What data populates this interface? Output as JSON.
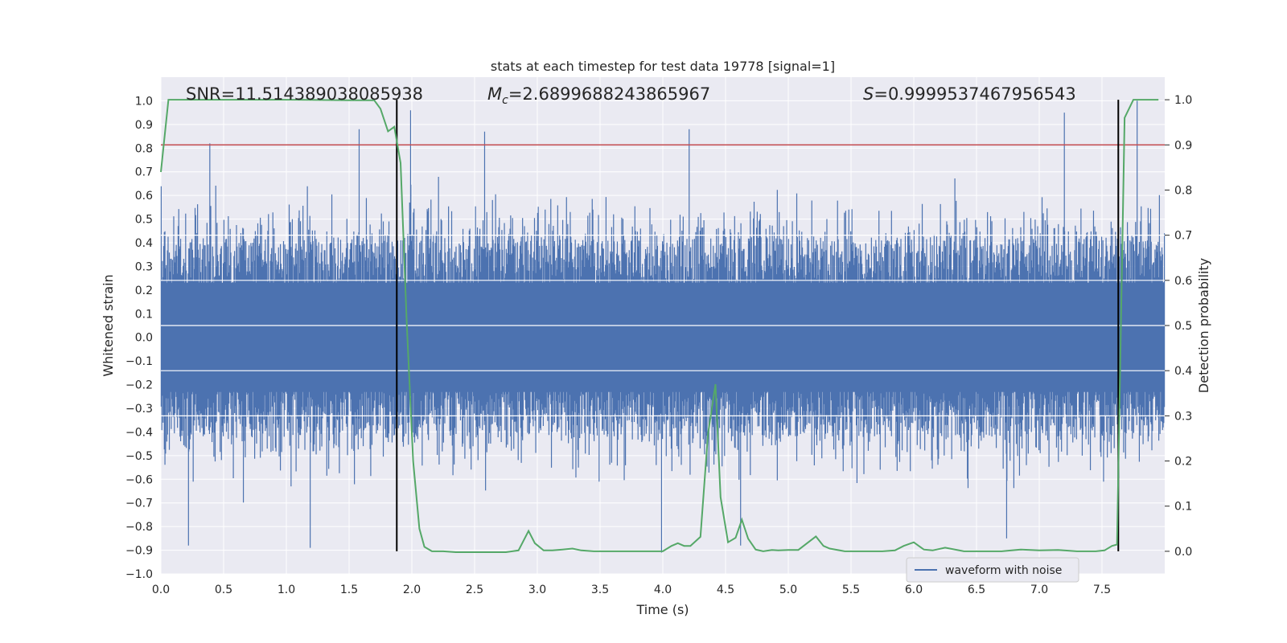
{
  "chart_data": {
    "type": "line",
    "title": "stats at each timestep for test data 19778 [signal=1]",
    "xlabel": "Time (s)",
    "ylabel_left": "Whitened strain",
    "ylabel_right": "Detection probability",
    "xlim": [
      0,
      8
    ],
    "ylim_left": [
      -1.0,
      1.1
    ],
    "ylim_right": [
      -0.05,
      1.05
    ],
    "x_ticks": [
      "0.0",
      "0.5",
      "1.0",
      "1.5",
      "2.0",
      "2.5",
      "3.0",
      "3.5",
      "4.0",
      "4.5",
      "5.0",
      "5.5",
      "6.0",
      "6.5",
      "7.0",
      "7.5"
    ],
    "y_left_ticks": [
      "−1.0",
      "−0.9",
      "−0.8",
      "−0.7",
      "−0.6",
      "−0.5",
      "−0.4",
      "−0.3",
      "−0.2",
      "−0.1",
      "0.0",
      "0.1",
      "0.2",
      "0.3",
      "0.4",
      "0.5",
      "0.6",
      "0.7",
      "0.8",
      "0.9",
      "1.0"
    ],
    "y_right_ticks": [
      "0.0",
      "0.1",
      "0.2",
      "0.3",
      "0.4",
      "0.5",
      "0.6",
      "0.7",
      "0.8",
      "0.9",
      "1.0"
    ],
    "grid": true,
    "stats": {
      "snr_label": "SNR=11.514389038085938",
      "mc_symbol": "M",
      "mc_sub": "c",
      "mc_value": "=2.6899688243865967",
      "s_symbol": "S",
      "s_value": "=0.9999537467956543"
    },
    "threshold_y_right": 0.9,
    "vertical_markers_x": [
      1.88,
      7.63
    ],
    "legend": {
      "label": "waveform with noise",
      "placement": "lower right"
    },
    "colors": {
      "waveform": "#4c72b0",
      "probability": "#55a868",
      "threshold": "#c44e52",
      "markers": "#000000",
      "background": "#eaeaf2",
      "grid": "#ffffff"
    },
    "waveform": {
      "description_samples": 1600,
      "envelope_core": 0.42,
      "peak_spikes": [
        {
          "t": 0.39,
          "v": 0.82
        },
        {
          "t": 1.58,
          "v": 0.88
        },
        {
          "t": 1.99,
          "v": 0.96
        },
        {
          "t": 2.58,
          "v": 0.87
        },
        {
          "t": 4.21,
          "v": 0.88
        },
        {
          "t": 7.2,
          "v": 0.95
        },
        {
          "t": 7.78,
          "v": 1.0
        },
        {
          "t": 0.22,
          "v": -0.88
        },
        {
          "t": 1.19,
          "v": -0.89
        },
        {
          "t": 3.99,
          "v": -0.91
        },
        {
          "t": 4.62,
          "v": -0.88
        },
        {
          "t": 6.74,
          "v": -0.85
        }
      ]
    },
    "probability_series": {
      "name": "",
      "x": [
        0.0,
        0.06,
        0.12,
        0.5,
        1.0,
        1.5,
        1.7,
        1.75,
        1.81,
        1.86,
        1.91,
        1.96,
        2.01,
        2.06,
        2.1,
        2.16,
        2.25,
        2.35,
        2.45,
        2.6,
        2.75,
        2.85,
        2.93,
        2.98,
        3.05,
        3.12,
        3.2,
        3.28,
        3.35,
        3.45,
        3.6,
        3.75,
        3.9,
        4.0,
        4.07,
        4.12,
        4.17,
        4.22,
        4.3,
        4.36,
        4.42,
        4.46,
        4.52,
        4.58,
        4.63,
        4.68,
        4.74,
        4.8,
        4.87,
        4.92,
        5.0,
        5.08,
        5.15,
        5.22,
        5.28,
        5.33,
        5.45,
        5.6,
        5.75,
        5.85,
        5.92,
        6.0,
        6.08,
        6.15,
        6.25,
        6.4,
        6.55,
        6.7,
        6.85,
        7.0,
        7.15,
        7.3,
        7.45,
        7.52,
        7.58,
        7.62,
        7.68,
        7.75,
        7.85,
        7.95
      ],
      "y": [
        0.84,
        1.0,
        1.0,
        1.0,
        1.0,
        0.999,
        0.999,
        0.98,
        0.93,
        0.94,
        0.86,
        0.5,
        0.2,
        0.05,
        0.01,
        0.0,
        0.0,
        -0.002,
        -0.002,
        -0.002,
        -0.002,
        0.002,
        0.045,
        0.018,
        0.002,
        0.002,
        0.004,
        0.006,
        0.002,
        0.0,
        0.0,
        0.0,
        0.0,
        0.0,
        0.012,
        0.018,
        0.012,
        0.012,
        0.032,
        0.26,
        0.37,
        0.12,
        0.02,
        0.03,
        0.07,
        0.028,
        0.004,
        0.0,
        0.003,
        0.002,
        0.003,
        0.003,
        0.018,
        0.033,
        0.012,
        0.006,
        0.0,
        0.0,
        0.0,
        0.002,
        0.012,
        0.02,
        0.004,
        0.002,
        0.008,
        0.0,
        0.0,
        0.0,
        0.004,
        0.002,
        0.003,
        0.0,
        0.0,
        0.002,
        0.012,
        0.015,
        0.96,
        1.0,
        1.0,
        1.0
      ]
    }
  }
}
